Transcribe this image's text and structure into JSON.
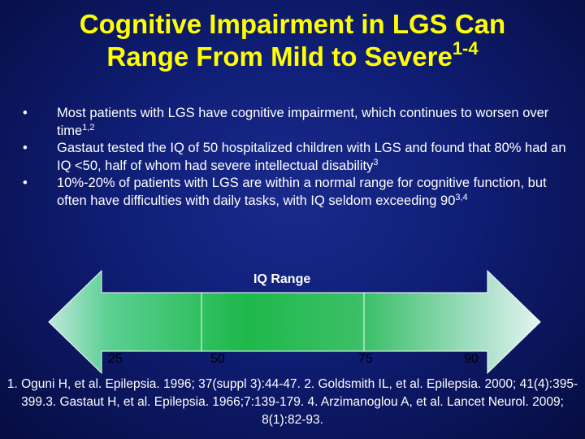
{
  "title": {
    "line1": "Cognitive Impairment in LGS Can",
    "line2": "Range From Mild to Severe",
    "sup": "1-4"
  },
  "bullets": [
    {
      "marker": "•",
      "text": "Most patients with LGS have cognitive impairment, which continues to worsen over time",
      "sup": "1,2"
    },
    {
      "marker": "•",
      "text": "Gastaut tested the IQ of 50 hospitalized children with LGS and found that 80% had an IQ <50, half of whom had severe intellectual disability",
      "sup": "3"
    },
    {
      "marker": "•",
      "text": "10%-20% of patients with LGS are within a normal range for cognitive function, but often have difficulties with daily tasks, with IQ seldom exceeding 90",
      "sup": "3,4"
    }
  ],
  "iq_range": {
    "label": "IQ Range",
    "ticks": [
      "25",
      "50",
      "75",
      "90"
    ]
  },
  "references": "1. Oguni H, et al. Epilepsia. 1996; 37(suppl 3):44-47. 2. Goldsmith IL, et al. Epilepsia. 2000; 41(4):395-399.3. Gastaut H, et al. Epilepsia. 1966;7:139-179. 4. Arzimanoglou A, et al. Lancet Neurol. 2009; 8(1):82-93.",
  "colors": {
    "title": "#ffff00",
    "text": "#ffffff",
    "arrow_dark": "#1db84a",
    "arrow_light": "#d6f0e8"
  }
}
